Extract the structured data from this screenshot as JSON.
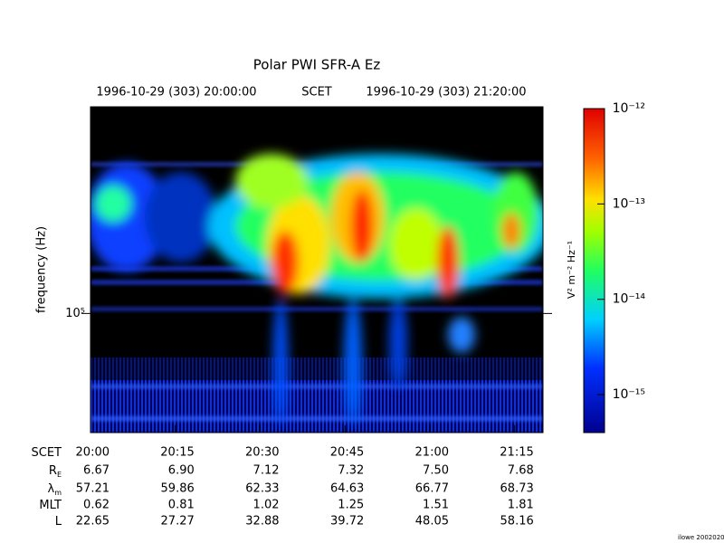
{
  "chart_data": {
    "type": "spectrogram",
    "title": "Polar PWI SFR-A Ez",
    "header": {
      "start": "1996-10-29 (303) 20:00:00",
      "center": "SCET",
      "end": "1996-10-29 (303) 21:20:00"
    },
    "y_label": "frequency (Hz)",
    "log_y": true,
    "ylim": [
      45000,
      400000
    ],
    "yticks": [
      {
        "value": 100000,
        "label": "10⁵"
      }
    ],
    "colorbar": {
      "label": "V² m⁻² Hz⁻¹",
      "log": true,
      "lim": [
        4e-16,
        1e-12
      ],
      "ticks": [
        {
          "value": 1e-12,
          "label": "10⁻¹²"
        },
        {
          "value": 1e-13,
          "label": "10⁻¹³"
        },
        {
          "value": 1e-14,
          "label": "10⁻¹⁴"
        },
        {
          "value": 1e-15,
          "label": "10⁻¹⁵"
        }
      ]
    },
    "ephemeris": [
      {
        "label": {
          "main": "SCET",
          "sub": ""
        },
        "values": [
          "20:00",
          "20:15",
          "20:30",
          "20:45",
          "21:00",
          "21:15"
        ]
      },
      {
        "label": {
          "main": "R",
          "sub": "E"
        },
        "values": [
          "6.67",
          "6.90",
          "7.12",
          "7.32",
          "7.50",
          "7.68"
        ]
      },
      {
        "label": {
          "main": "λ",
          "sub": "m"
        },
        "values": [
          "57.21",
          "59.86",
          "62.33",
          "64.63",
          "66.77",
          "68.73"
        ]
      },
      {
        "label": {
          "main": "MLT",
          "sub": ""
        },
        "values": [
          "0.62",
          "0.81",
          "1.02",
          "1.25",
          "1.51",
          "1.81"
        ]
      },
      {
        "label": {
          "main": "L",
          "sub": ""
        },
        "values": [
          "22.65",
          "27.27",
          "32.88",
          "39.72",
          "48.05",
          "58.16"
        ]
      }
    ],
    "footer": "ilowe 20020209"
  }
}
